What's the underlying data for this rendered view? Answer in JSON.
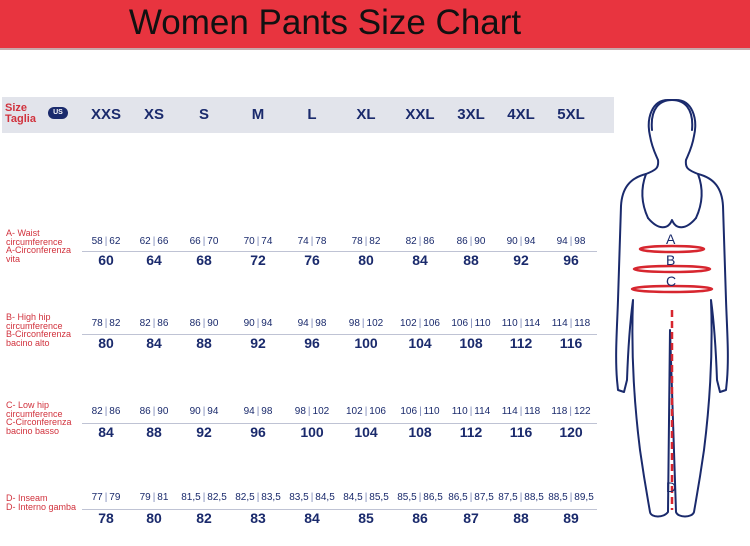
{
  "title": "Women Pants Size Chart",
  "header": {
    "size_label_line1": "Size",
    "size_label_line2": "Taglia",
    "us_badge": "US",
    "sizes": [
      "XXS",
      "XS",
      "S",
      "M",
      "L",
      "XL",
      "XXL",
      "3XL",
      "4XL",
      "5XL"
    ]
  },
  "rows": [
    {
      "label_lines": [
        "A- Waist",
        "circumference",
        "A-Circonferenza",
        "vita"
      ],
      "pairs": [
        [
          "58",
          "62"
        ],
        [
          "62",
          "66"
        ],
        [
          "66",
          "70"
        ],
        [
          "70",
          "74"
        ],
        [
          "74",
          "78"
        ],
        [
          "78",
          "82"
        ],
        [
          "82",
          "86"
        ],
        [
          "86",
          "90"
        ],
        [
          "90",
          "94"
        ],
        [
          "94",
          "98"
        ]
      ],
      "us": [
        "60",
        "64",
        "68",
        "72",
        "76",
        "80",
        "84",
        "88",
        "92",
        "96"
      ]
    },
    {
      "label_lines": [
        "B- High hip",
        "circumference",
        "B-Circonferenza",
        "bacino alto"
      ],
      "pairs": [
        [
          "78",
          "82"
        ],
        [
          "82",
          "86"
        ],
        [
          "86",
          "90"
        ],
        [
          "90",
          "94"
        ],
        [
          "94",
          "98"
        ],
        [
          "98",
          "102"
        ],
        [
          "102",
          "106"
        ],
        [
          "106",
          "110"
        ],
        [
          "110",
          "114"
        ],
        [
          "114",
          "118"
        ]
      ],
      "us": [
        "80",
        "84",
        "88",
        "92",
        "96",
        "100",
        "104",
        "108",
        "112",
        "116"
      ]
    },
    {
      "label_lines": [
        "C- Low hip",
        "circumference",
        "C-Circonferenza",
        "bacino basso"
      ],
      "pairs": [
        [
          "82",
          "86"
        ],
        [
          "86",
          "90"
        ],
        [
          "90",
          "94"
        ],
        [
          "94",
          "98"
        ],
        [
          "98",
          "102"
        ],
        [
          "102",
          "106"
        ],
        [
          "106",
          "110"
        ],
        [
          "110",
          "114"
        ],
        [
          "114",
          "118"
        ],
        [
          "118",
          "122"
        ]
      ],
      "us": [
        "84",
        "88",
        "92",
        "96",
        "100",
        "104",
        "108",
        "112",
        "116",
        "120"
      ]
    },
    {
      "label_lines": [
        "D- Inseam",
        "D- Interno gamba"
      ],
      "pairs": [
        [
          "77",
          "79"
        ],
        [
          "79",
          "81"
        ],
        [
          "81,5",
          "82,5"
        ],
        [
          "82,5",
          "83,5"
        ],
        [
          "83,5",
          "84,5"
        ],
        [
          "84,5",
          "85,5"
        ],
        [
          "85,5",
          "86,5"
        ],
        [
          "86,5",
          "87,5"
        ],
        [
          "87,5",
          "88,5"
        ],
        [
          "88,5",
          "89,5"
        ]
      ],
      "us": [
        "78",
        "80",
        "82",
        "83",
        "84",
        "85",
        "86",
        "87",
        "88",
        "89"
      ]
    }
  ],
  "figure": {
    "labels": [
      "A",
      "B",
      "C",
      "D"
    ]
  },
  "colors": {
    "title_bar": "#e8343f",
    "navy": "#1a2a6c",
    "label_red": "#d1323d",
    "header_band": "#e2e4eb"
  }
}
